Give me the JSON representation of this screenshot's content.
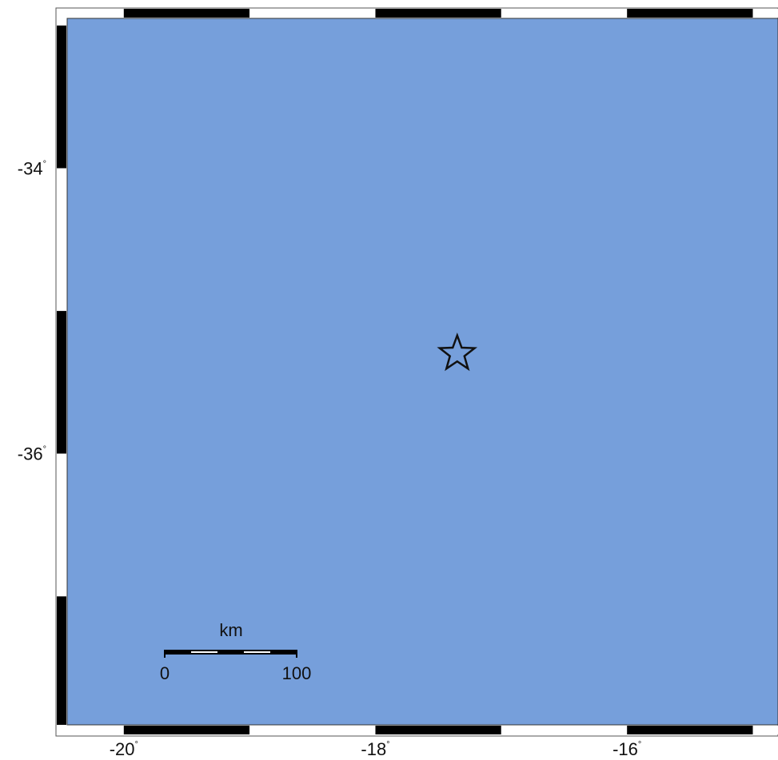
{
  "map": {
    "ocean_color": "#769fdb",
    "frame_dark": "#000000",
    "frame_light": "#ffffff",
    "frame_line": "#555555",
    "star_fill": "none",
    "star_stroke": "#111111",
    "lon_ticks": [
      {
        "value": -20,
        "label": "-20",
        "deg": "°"
      },
      {
        "value": -18,
        "label": "-18",
        "deg": "°"
      },
      {
        "value": -16,
        "label": "-16",
        "deg": "°"
      }
    ],
    "lat_ticks": [
      {
        "value": -34,
        "label": "-34",
        "deg": "°"
      },
      {
        "value": -36,
        "label": "-36",
        "deg": "°"
      }
    ],
    "extent": {
      "lon_min": -20.45,
      "lon_max": -14.8,
      "lat_max": -32.95,
      "lat_min": -37.9
    },
    "event_marker": {
      "icon": "star-icon",
      "lon": -17.35,
      "lat": -35.3
    },
    "scale_bar": {
      "unit": "km",
      "left_label": "0",
      "right_label": "100"
    }
  }
}
